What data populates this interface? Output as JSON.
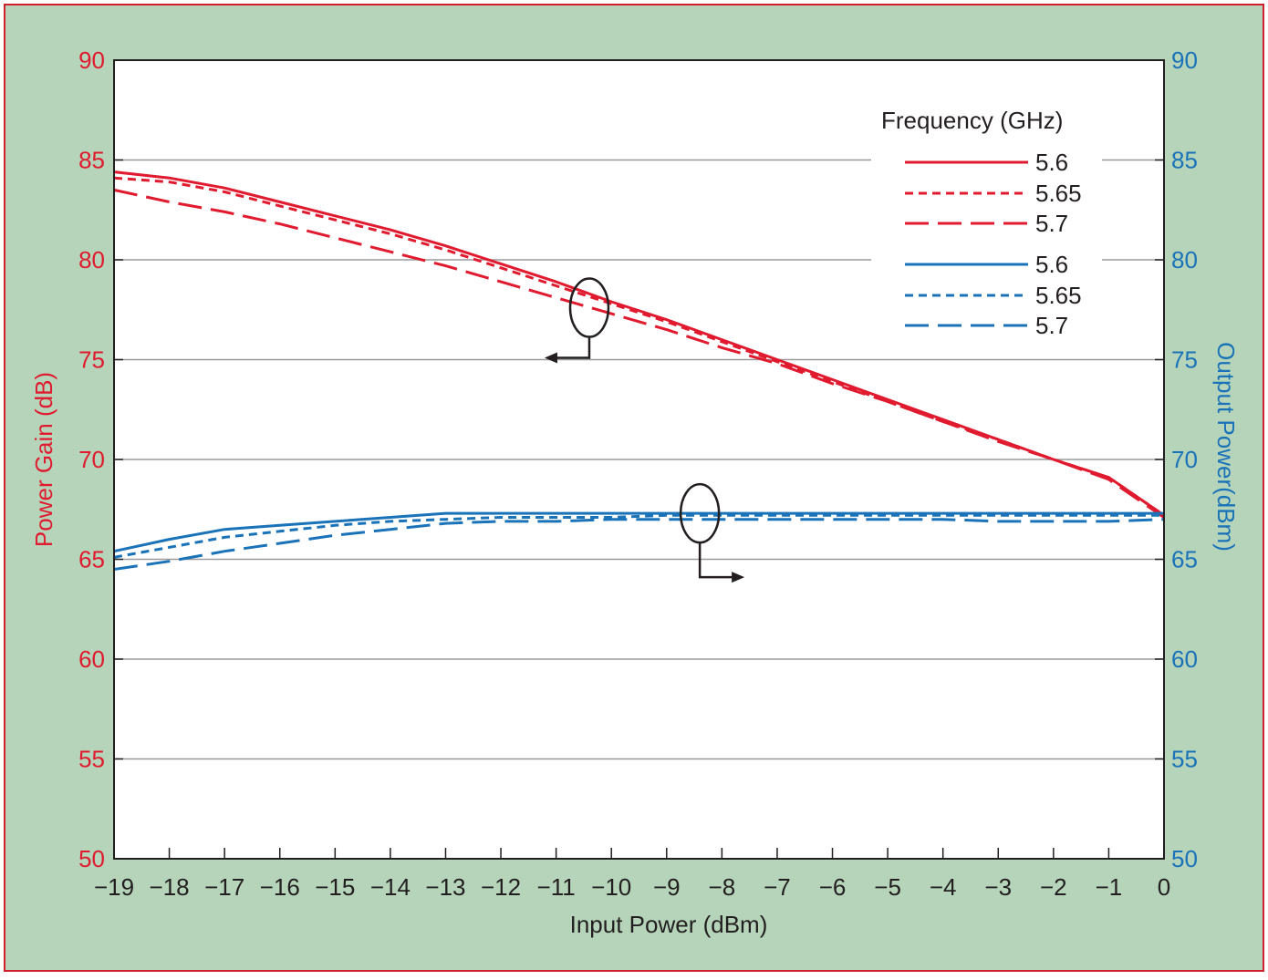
{
  "colors": {
    "background": "#b5d4b9",
    "border": "#d0202f",
    "left_axis": "#e01b2f",
    "right_axis": "#1a73b8",
    "grid": "#9a9a9a",
    "text": "#231f20"
  },
  "chart_data": {
    "type": "line",
    "title": "",
    "xlabel": "Input Power (dBm)",
    "ylabel_left": "Power Gain (dB)",
    "ylabel_right": "Output Power(dBm)",
    "xlim": [
      -19,
      0
    ],
    "ylim_left": [
      50,
      90
    ],
    "ylim_right": [
      50,
      90
    ],
    "x_ticks": [
      "−19",
      "−18",
      "−17",
      "−16",
      "−15",
      "−14",
      "−13",
      "−12",
      "−11",
      "−10",
      "−9",
      "−8",
      "−7",
      "−6",
      "−5",
      "−4",
      "−3",
      "−2",
      "−1",
      "0"
    ],
    "y_ticks_left": [
      "50",
      "55",
      "60",
      "65",
      "70",
      "75",
      "80",
      "85",
      "90"
    ],
    "y_ticks_right": [
      "50",
      "55",
      "60",
      "65",
      "70",
      "75",
      "80",
      "85",
      "90"
    ],
    "grid": "horizontal",
    "legend": {
      "title": "Frequency (GHz)",
      "placement": "top-right"
    },
    "series": [
      {
        "name": "5.6",
        "axis": "left",
        "style": "solid",
        "color": "#e01b2f",
        "x": [
          -19,
          -18,
          -17,
          -16,
          -15,
          -14,
          -13,
          -12,
          -11,
          -10,
          -9,
          -8,
          -7,
          -6,
          -5,
          -4,
          -3,
          -2,
          -1,
          0
        ],
        "values": [
          84.4,
          84.1,
          83.6,
          82.9,
          82.2,
          81.5,
          80.7,
          79.8,
          78.9,
          77.9,
          77.0,
          76.0,
          75.0,
          74.0,
          73.0,
          72.0,
          71.0,
          70.0,
          69.1,
          67.2
        ]
      },
      {
        "name": "5.65",
        "axis": "left",
        "style": "dotted",
        "color": "#e01b2f",
        "x": [
          -19,
          -18,
          -17,
          -16,
          -15,
          -14,
          -13,
          -12,
          -11,
          -10,
          -9,
          -8,
          -7,
          -6,
          -5,
          -4,
          -3,
          -2,
          -1,
          0
        ],
        "values": [
          84.1,
          83.9,
          83.4,
          82.7,
          82.0,
          81.3,
          80.5,
          79.6,
          78.7,
          77.8,
          76.9,
          75.9,
          74.9,
          73.9,
          72.9,
          71.9,
          71.0,
          70.0,
          69.1,
          67.2
        ]
      },
      {
        "name": "5.7",
        "axis": "left",
        "style": "dashed",
        "color": "#e01b2f",
        "x": [
          -19,
          -18,
          -17,
          -16,
          -15,
          -14,
          -13,
          -12,
          -11,
          -10,
          -9,
          -8,
          -7,
          -6,
          -5,
          -4,
          -3,
          -2,
          -1,
          0
        ],
        "values": [
          83.5,
          82.9,
          82.4,
          81.8,
          81.1,
          80.4,
          79.7,
          78.9,
          78.1,
          77.3,
          76.5,
          75.6,
          74.8,
          73.8,
          72.9,
          71.9,
          70.9,
          70.0,
          69.0,
          67.1
        ]
      },
      {
        "name": "5.6",
        "axis": "right",
        "style": "solid",
        "color": "#1a73b8",
        "x": [
          -19,
          -18,
          -17,
          -16,
          -15,
          -14,
          -13,
          -12,
          -11,
          -10,
          -9,
          -8,
          -7,
          -6,
          -5,
          -4,
          -3,
          -2,
          -1,
          0
        ],
        "values": [
          65.4,
          66.0,
          66.5,
          66.7,
          66.9,
          67.1,
          67.3,
          67.3,
          67.3,
          67.3,
          67.3,
          67.3,
          67.3,
          67.3,
          67.3,
          67.3,
          67.3,
          67.3,
          67.3,
          67.3
        ]
      },
      {
        "name": "5.65",
        "axis": "right",
        "style": "dotted",
        "color": "#1a73b8",
        "x": [
          -19,
          -18,
          -17,
          -16,
          -15,
          -14,
          -13,
          -12,
          -11,
          -10,
          -9,
          -8,
          -7,
          -6,
          -5,
          -4,
          -3,
          -2,
          -1,
          0
        ],
        "values": [
          65.1,
          65.6,
          66.1,
          66.4,
          66.7,
          66.9,
          67.0,
          67.1,
          67.1,
          67.1,
          67.2,
          67.2,
          67.2,
          67.2,
          67.2,
          67.2,
          67.2,
          67.2,
          67.2,
          67.2
        ]
      },
      {
        "name": "5.7",
        "axis": "right",
        "style": "dashed",
        "color": "#1a73b8",
        "x": [
          -19,
          -18,
          -17,
          -16,
          -15,
          -14,
          -13,
          -12,
          -11,
          -10,
          -9,
          -8,
          -7,
          -6,
          -5,
          -4,
          -3,
          -2,
          -1,
          0
        ],
        "values": [
          64.5,
          64.9,
          65.4,
          65.8,
          66.2,
          66.5,
          66.8,
          66.9,
          66.9,
          67.0,
          67.0,
          67.0,
          67.0,
          67.0,
          67.0,
          67.0,
          66.9,
          66.9,
          66.9,
          67.0
        ]
      }
    ],
    "annotations": [
      {
        "shape": "ellipse",
        "target_axis": "left",
        "x": -10.4,
        "y": 77.6,
        "arrow": "left"
      },
      {
        "shape": "ellipse",
        "target_axis": "right",
        "x": -8.4,
        "y": 67.3,
        "arrow": "right"
      }
    ]
  }
}
